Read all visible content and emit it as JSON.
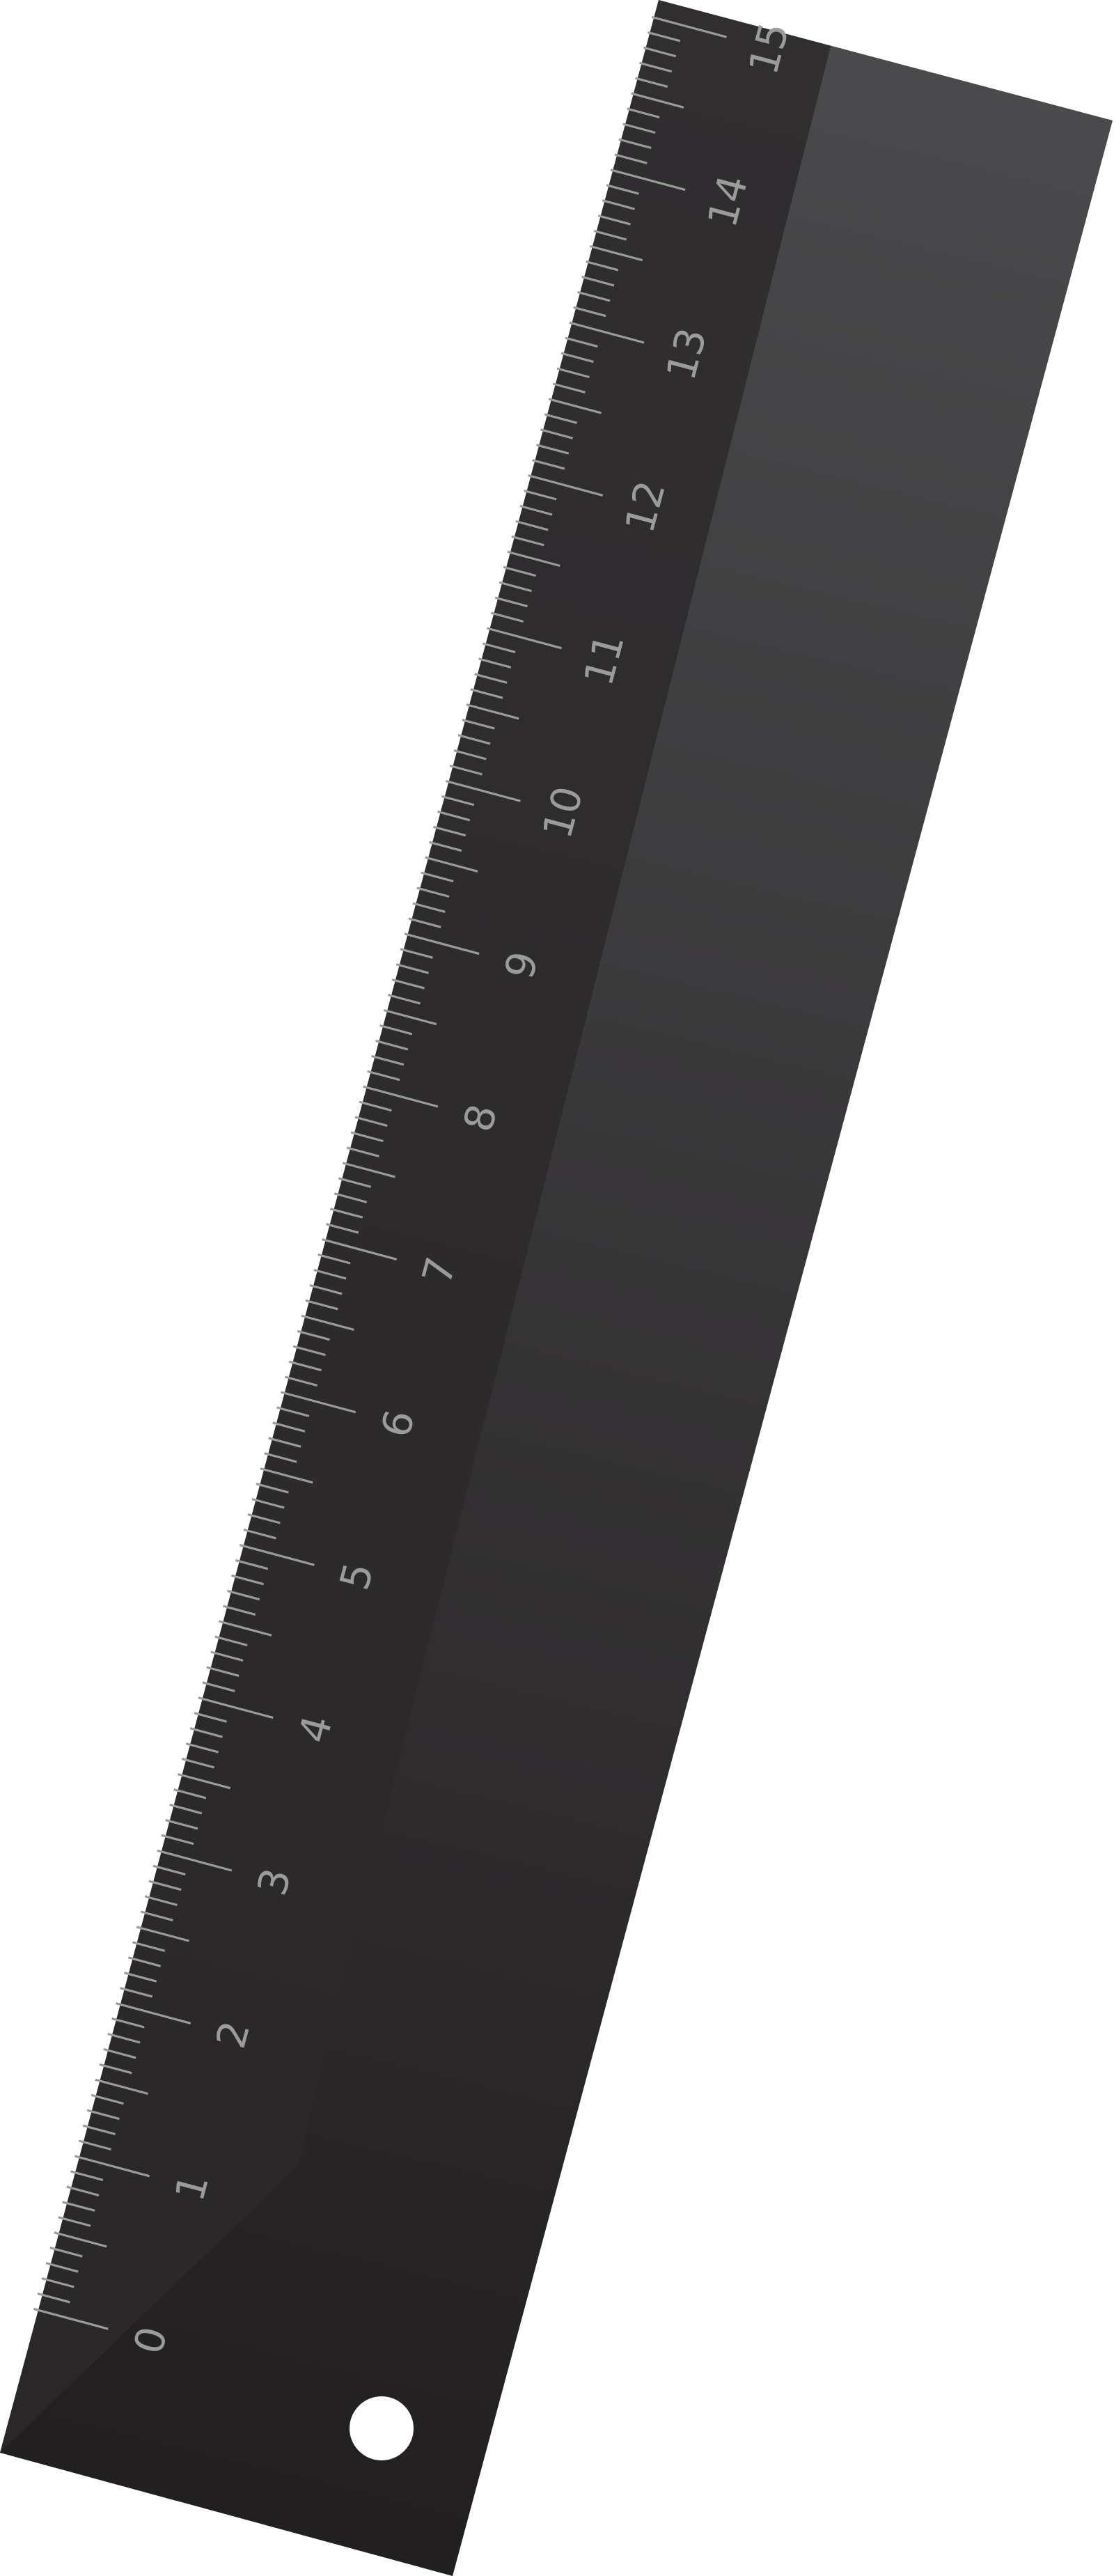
{
  "ruler": {
    "scale_labels": [
      "0",
      "1",
      "2",
      "3",
      "4",
      "5",
      "6",
      "7",
      "8",
      "9",
      "10",
      "11",
      "12",
      "13",
      "14",
      "15"
    ],
    "ticks_per_unit": 10,
    "hanging_hole": true,
    "colors": {
      "background": "#ffffff",
      "ruler_top": "#4a4a4c",
      "ruler_bottom": "#221f20",
      "tick_strip": "#2b292a",
      "tick": "#9b9b9b",
      "number": "#9b9b9b",
      "hole": "#ffffff"
    }
  }
}
